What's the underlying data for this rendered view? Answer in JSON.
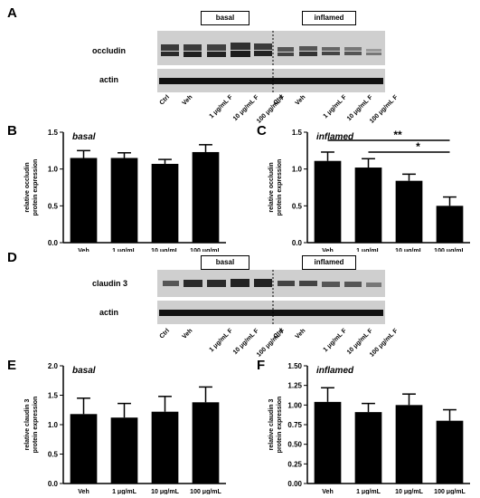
{
  "panels": {
    "A": "A",
    "B": "B",
    "C": "C",
    "D": "D",
    "E": "E",
    "F": "F"
  },
  "blot_A": {
    "boxes": [
      "basal",
      "inflamed"
    ],
    "rows": [
      "occludin",
      "actin"
    ],
    "lanes": [
      "Ctrl",
      "Veh",
      "1 μg/mL F",
      "10 μg/mL F",
      "100 μg/mL F",
      "Ctrl",
      "Veh",
      "1 μg/mL F",
      "10 μg/mL F",
      "100 μg/mL F"
    ]
  },
  "blot_D": {
    "boxes": [
      "basal",
      "inflamed"
    ],
    "rows": [
      "claudin 3",
      "actin"
    ],
    "lanes": [
      "Ctrl",
      "Veh",
      "1 μg/mL F",
      "10 μg/mL F",
      "100 μg/mL F",
      "Ctrl",
      "Veh",
      "1 μg/mL F",
      "10 μg/mL F",
      "100 μg/mL F"
    ]
  },
  "chart_data": [
    {
      "id": "B",
      "type": "bar",
      "title": "basal",
      "ylabel": "relative occludin protein expression",
      "categories": [
        "Veh",
        "1 μg/mL",
        "10 μg/mL",
        "100 μg/mL"
      ],
      "values": [
        1.15,
        1.15,
        1.07,
        1.23
      ],
      "errors": [
        0.1,
        0.07,
        0.06,
        0.1
      ],
      "ylim": [
        0,
        1.5
      ],
      "yticks": [
        "0.0",
        "0.5",
        "1.0",
        "1.5"
      ],
      "ytickvals": [
        0,
        0.5,
        1.0,
        1.5
      ],
      "significance": []
    },
    {
      "id": "C",
      "type": "bar",
      "title": "inflamed",
      "ylabel": "relative occludin protein expression",
      "categories": [
        "Veh",
        "1 μg/mL",
        "10 μg/mL",
        "100 μg/mL"
      ],
      "values": [
        1.11,
        1.02,
        0.84,
        0.5
      ],
      "errors": [
        0.12,
        0.12,
        0.09,
        0.12
      ],
      "ylim": [
        0,
        1.5
      ],
      "yticks": [
        "0.0",
        "0.5",
        "1.0",
        "1.5"
      ],
      "ytickvals": [
        0,
        0.5,
        1.0,
        1.5
      ],
      "significance": [
        {
          "from": 0,
          "to": 3,
          "y": 1.39,
          "label": "**"
        },
        {
          "from": 1,
          "to": 3,
          "y": 1.23,
          "label": "*"
        }
      ]
    },
    {
      "id": "E",
      "type": "bar",
      "title": "basal",
      "ylabel": "relative claudin 3 protein expression",
      "categories": [
        "Veh",
        "1 μg/mL",
        "10 μg/mL",
        "100 μg/mL"
      ],
      "values": [
        1.18,
        1.12,
        1.22,
        1.38
      ],
      "errors": [
        0.27,
        0.24,
        0.26,
        0.26
      ],
      "ylim": [
        0,
        2.0
      ],
      "yticks": [
        "0.0",
        "0.5",
        "1.0",
        "1.5",
        "2.0"
      ],
      "ytickvals": [
        0,
        0.5,
        1.0,
        1.5,
        2.0
      ],
      "significance": []
    },
    {
      "id": "F",
      "type": "bar",
      "title": "inflamed",
      "ylabel": "relative claudin 3 protein expression",
      "categories": [
        "Veh",
        "1 μg/mL",
        "10 μg/mL",
        "100 μg/mL"
      ],
      "values": [
        1.04,
        0.91,
        1.0,
        0.8
      ],
      "errors": [
        0.18,
        0.11,
        0.14,
        0.14
      ],
      "ylim": [
        0,
        1.5
      ],
      "yticks": [
        "0.00",
        "0.25",
        "0.50",
        "0.75",
        "1.00",
        "1.25",
        "1.50"
      ],
      "ytickvals": [
        0,
        0.25,
        0.5,
        0.75,
        1.0,
        1.25,
        1.5
      ],
      "significance": []
    }
  ]
}
